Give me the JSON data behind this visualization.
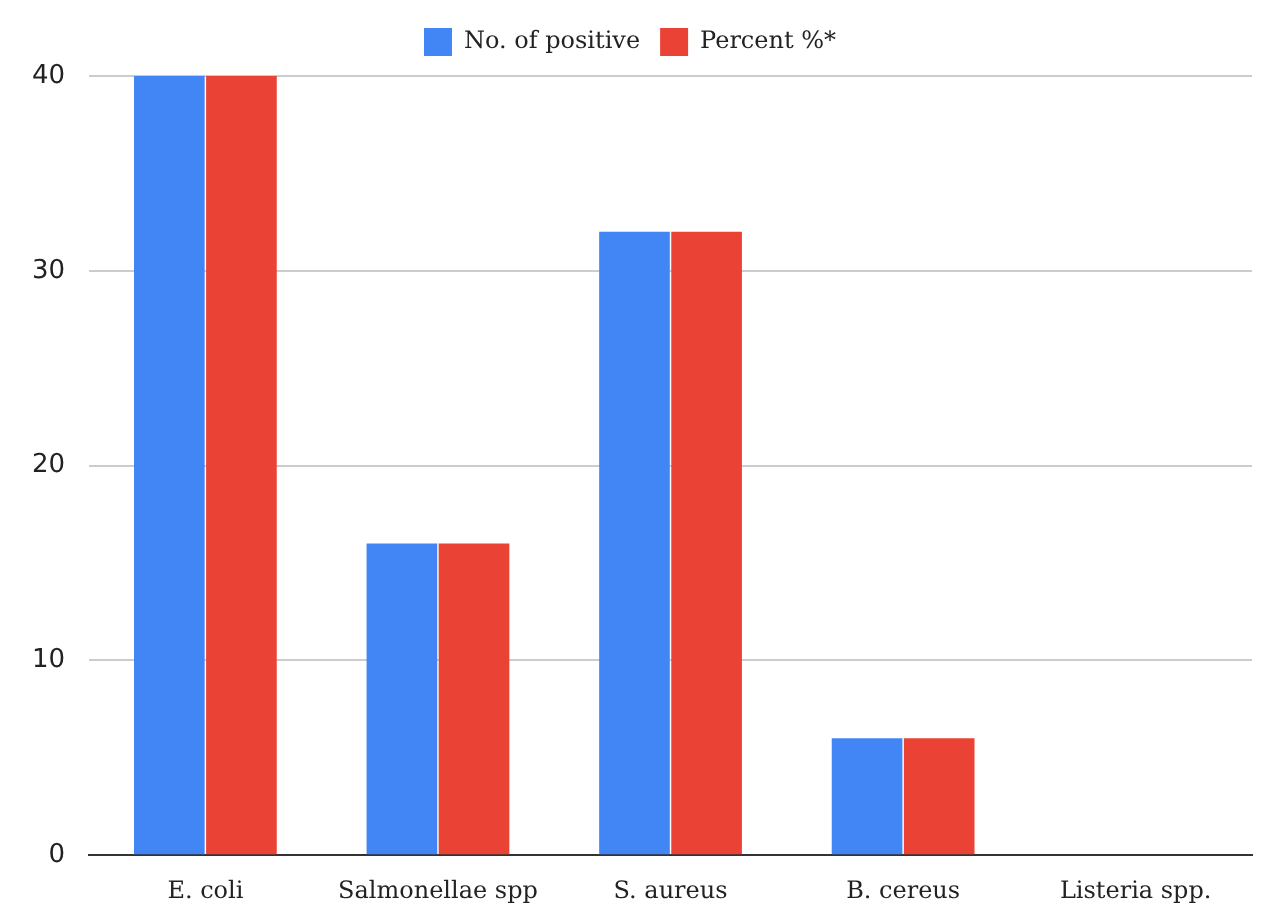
{
  "chart_data": {
    "type": "bar",
    "categories": [
      "E. coli",
      "Salmonellae spp",
      "S. aureus",
      "B. cereus",
      "Listeria spp."
    ],
    "series": [
      {
        "name": "No. of positive",
        "color": "#4285f4",
        "values": [
          40,
          16,
          32,
          6,
          0
        ]
      },
      {
        "name": "Percent %*",
        "color": "#ea4335",
        "values": [
          40,
          16,
          32,
          6,
          0
        ]
      }
    ],
    "ylim": [
      0,
      40
    ],
    "yticks": [
      0,
      10,
      20,
      30,
      40
    ],
    "grid": "y",
    "legend": "top"
  }
}
